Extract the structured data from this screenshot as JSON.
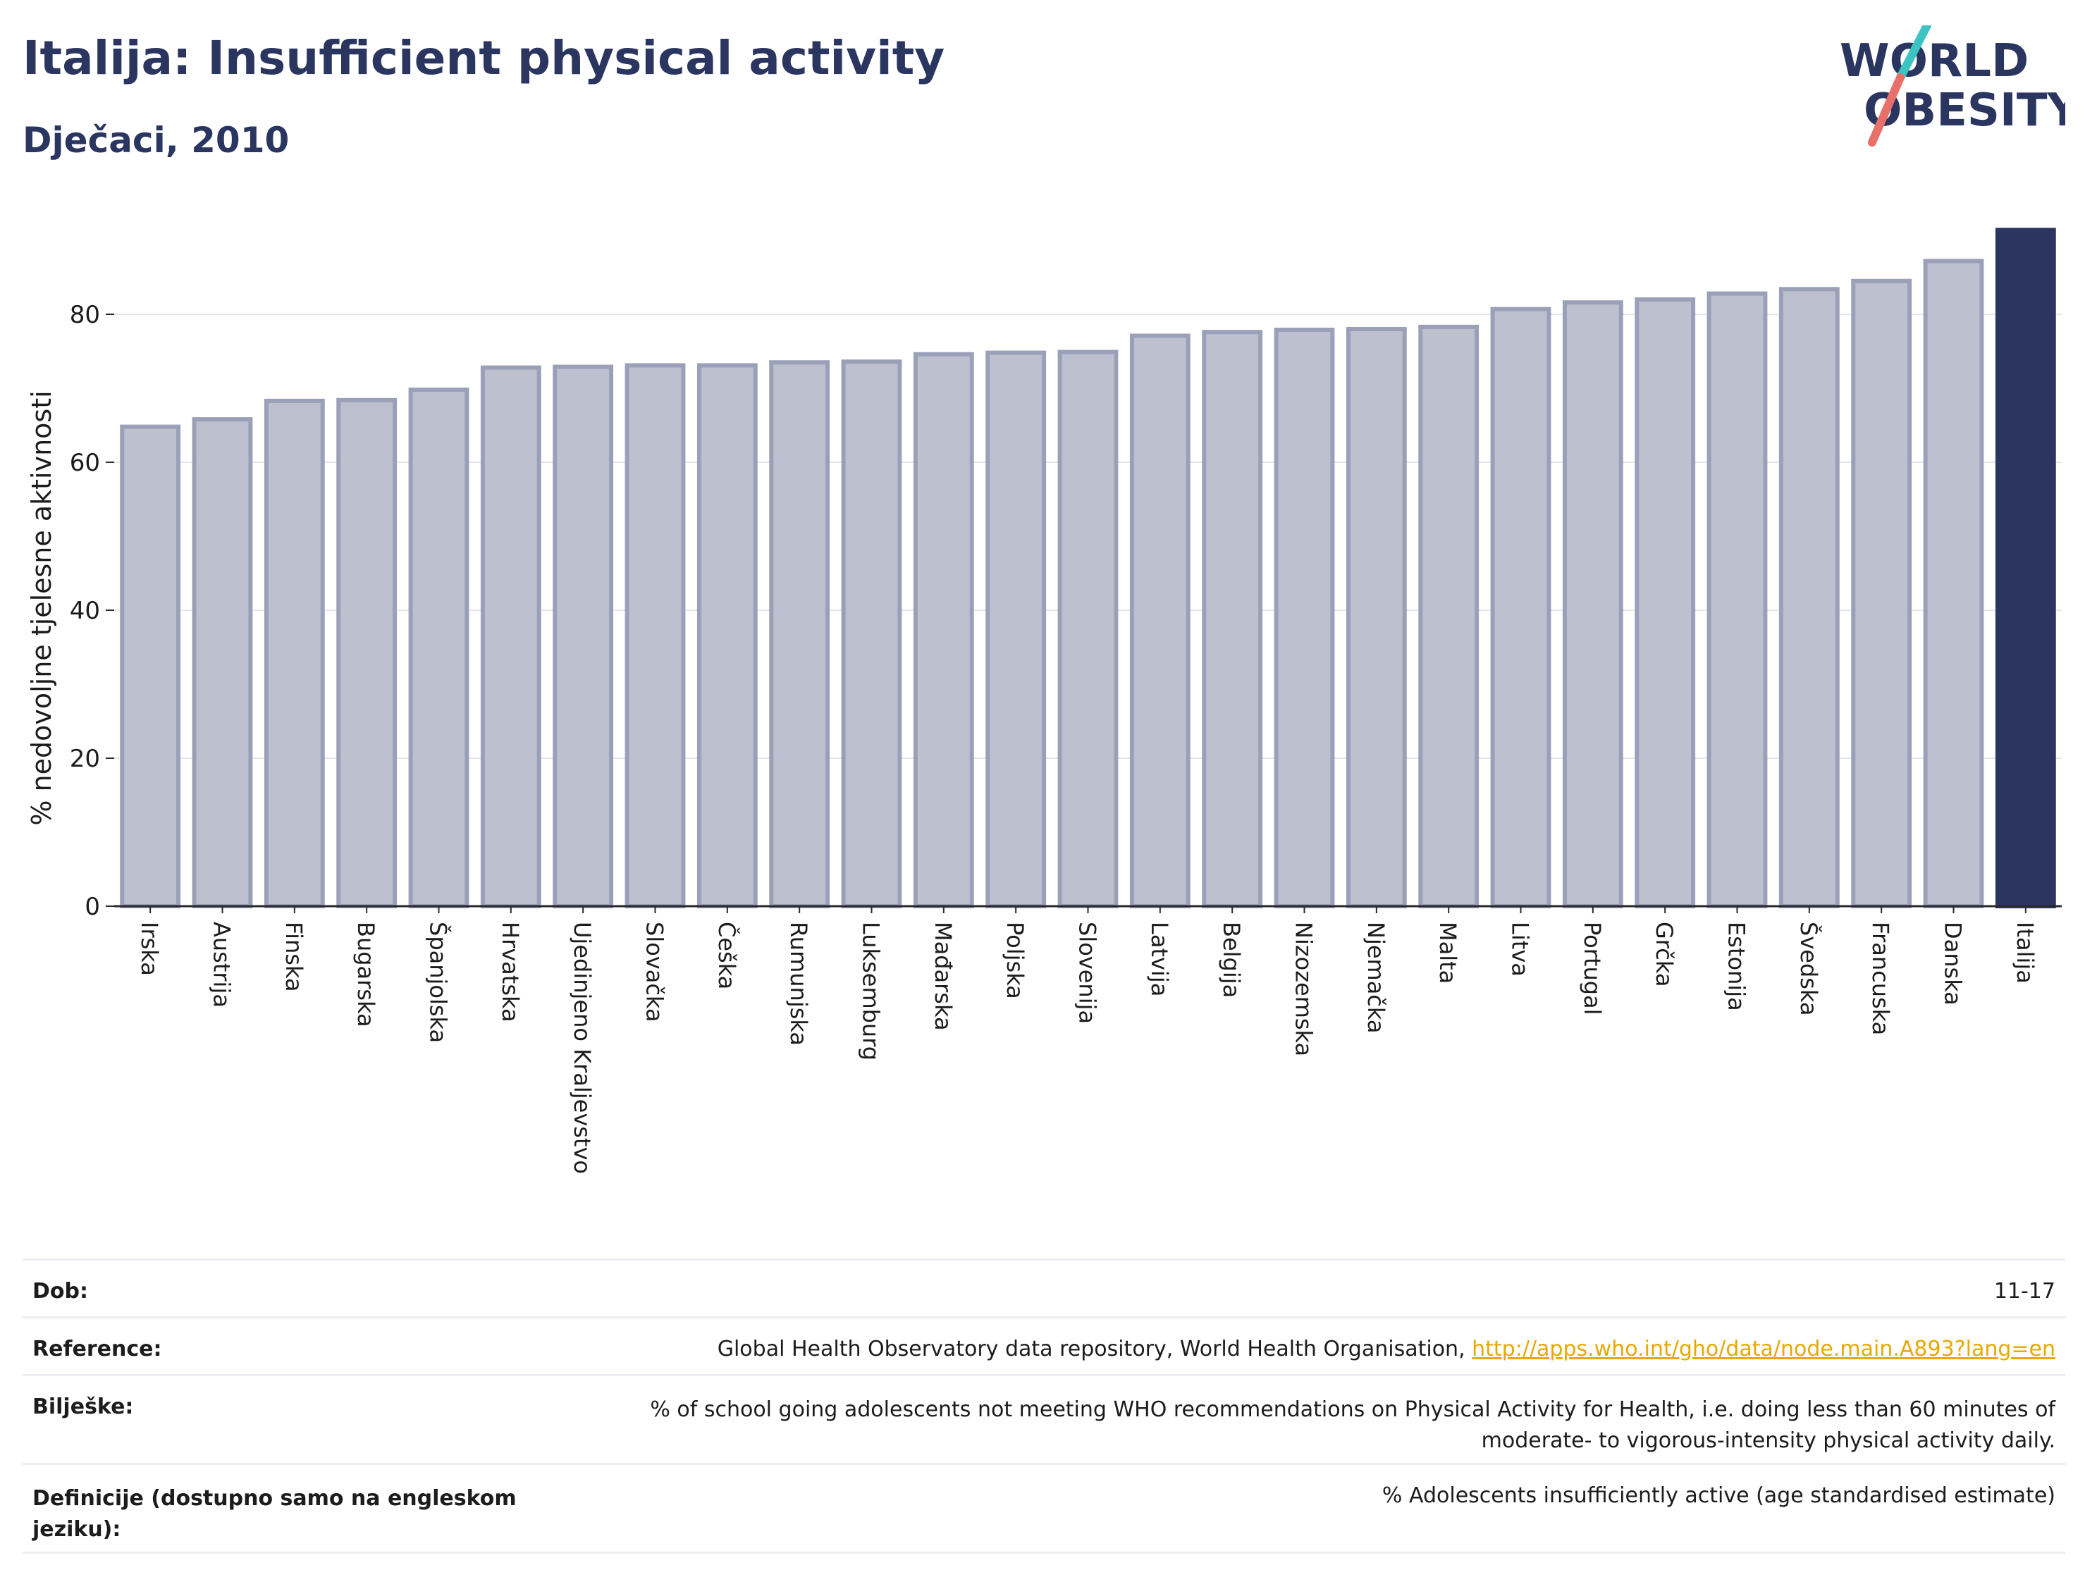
{
  "header": {
    "title": "Italija: Insufficient physical activity",
    "subtitle": "Dječaci, 2010"
  },
  "logo": {
    "line1": "WORLD",
    "line2": "OBESITY",
    "colors": {
      "text": "#2a3560",
      "slash_teal": "#3cc4c2",
      "slash_coral": "#e8706a"
    }
  },
  "chart_data": {
    "type": "bar",
    "title": "",
    "xlabel": "",
    "ylabel": "% nedovoljne tjelesne aktivnosti",
    "ylim": [
      0,
      92
    ],
    "yticks": [
      0,
      20,
      40,
      60,
      80
    ],
    "grid": true,
    "legend": "none",
    "highlight_category": "Italija",
    "colors": {
      "bar": "#bcc0cf",
      "bar_border": "#9aa0b8",
      "highlight": "#2b3560"
    },
    "categories": [
      "Irska",
      "Austrija",
      "Finska",
      "Bugarska",
      "Španjolska",
      "Hrvatska",
      "Ujedinjeno Kraljevstvo",
      "Slovačka",
      "Češka",
      "Rumunjska",
      "Luksemburg",
      "Mađarska",
      "Poljska",
      "Slovenija",
      "Latvija",
      "Belgija",
      "Nizozemska",
      "Njemačka",
      "Malta",
      "Litva",
      "Portugal",
      "Grčka",
      "Estonija",
      "Švedska",
      "Francuska",
      "Danska",
      "Italija"
    ],
    "values": [
      64.8,
      65.8,
      68.3,
      68.4,
      69.8,
      72.8,
      72.9,
      73.1,
      73.1,
      73.5,
      73.6,
      74.6,
      74.8,
      74.9,
      77.1,
      77.6,
      77.9,
      78.0,
      78.3,
      80.7,
      81.6,
      82.0,
      82.8,
      83.4,
      84.5,
      87.2,
      91.4
    ]
  },
  "info": {
    "dob_label": "Dob:",
    "dob_value": "11-17",
    "reference_label": "Reference:",
    "reference_text": "Global Health Observatory data repository, World Health Organisation, ",
    "reference_link": "http://apps.who.int/gho/data/node.main.A893?lang=en",
    "notes_label": "Bilješke:",
    "notes_line1": "% of school going adolescents not meeting WHO recommendations on Physical Activity for Health, i.e. doing less than 60 minutes of",
    "notes_line2": "moderate- to vigorous-intensity physical activity daily.",
    "definitions_label_line1": "Definicije (dostupno samo na engleskom",
    "definitions_label_line2": "jeziku):",
    "definitions_value": "% Adolescents insufficiently active (age standardised estimate)"
  }
}
